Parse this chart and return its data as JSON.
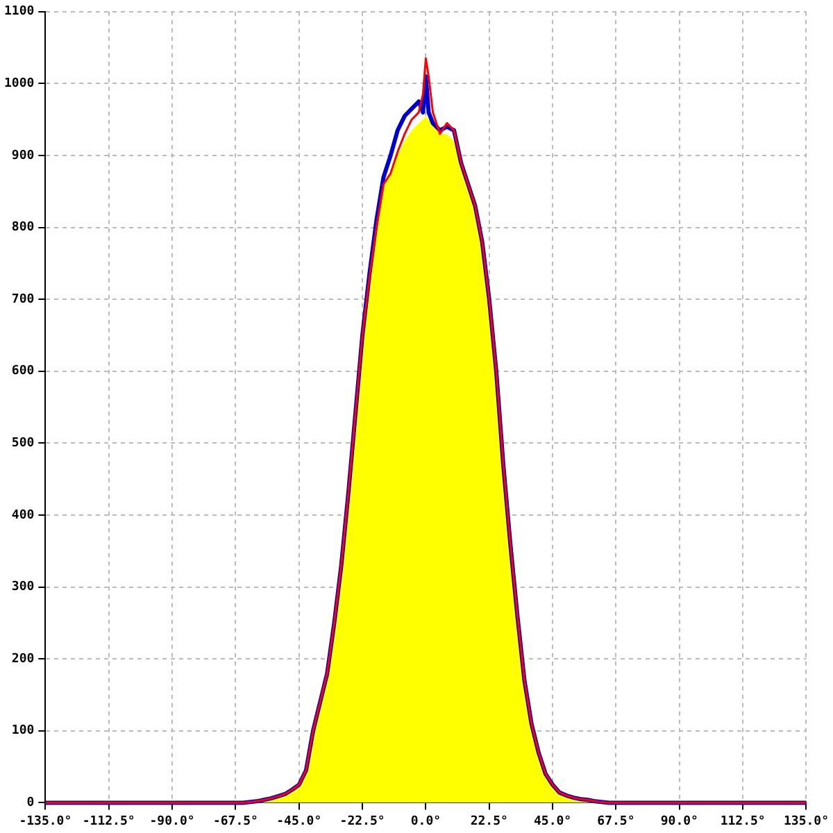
{
  "chart_data": {
    "type": "area",
    "x": [
      -135,
      -65,
      -60,
      -57.5,
      -55,
      -52.5,
      -50,
      -47.5,
      -45,
      -42.5,
      -40,
      -37.5,
      -35,
      -32.5,
      -30,
      -27.5,
      -25,
      -22.5,
      -20,
      -17.5,
      -15,
      -12.5,
      -10,
      -7.5,
      -5,
      -2.5,
      -1,
      0,
      1,
      2.5,
      5,
      7.5,
      10,
      12.5,
      15,
      17.5,
      20,
      22.5,
      25,
      27.5,
      30,
      32.5,
      35,
      37.5,
      40,
      42.5,
      45,
      47.5,
      50,
      52.5,
      55,
      57.5,
      60,
      65,
      135
    ],
    "series": [
      {
        "type": "area",
        "color": "#ffff00",
        "values": [
          0,
          0,
          2,
          4,
          6,
          9,
          12,
          18,
          25,
          45,
          100,
          140,
          180,
          250,
          330,
          430,
          540,
          650,
          730,
          800,
          855,
          875,
          900,
          920,
          935,
          945,
          950,
          955,
          950,
          945,
          930,
          930,
          920,
          885,
          855,
          825,
          775,
          700,
          600,
          470,
          360,
          260,
          170,
          110,
          70,
          40,
          25,
          14,
          10,
          7,
          5,
          4,
          2,
          0,
          0
        ]
      },
      {
        "type": "line",
        "color": "#0000cc",
        "values": [
          0,
          0,
          2,
          4,
          6,
          9,
          12,
          18,
          25,
          45,
          100,
          140,
          180,
          250,
          330,
          430,
          540,
          650,
          735,
          810,
          870,
          900,
          935,
          955,
          965,
          975,
          960,
          1010,
          960,
          945,
          935,
          940,
          935,
          890,
          860,
          830,
          780,
          700,
          600,
          470,
          360,
          260,
          170,
          110,
          70,
          40,
          25,
          14,
          10,
          7,
          5,
          4,
          2,
          0,
          0
        ]
      },
      {
        "type": "line",
        "color": "#ff0000",
        "values": [
          0,
          0,
          2,
          4,
          6,
          9,
          12,
          18,
          25,
          45,
          100,
          140,
          180,
          250,
          330,
          430,
          540,
          650,
          730,
          800,
          860,
          875,
          905,
          930,
          950,
          960,
          985,
          1035,
          1010,
          960,
          930,
          945,
          935,
          890,
          860,
          830,
          780,
          700,
          600,
          470,
          360,
          260,
          170,
          110,
          70,
          40,
          25,
          14,
          10,
          7,
          5,
          4,
          2,
          0,
          0
        ]
      }
    ],
    "xlim": [
      -135,
      135
    ],
    "xticks": [
      {
        "value": -135,
        "label": "-135.0°"
      },
      {
        "value": -112.5,
        "label": "-112.5°"
      },
      {
        "value": -90,
        "label": "-90.0°"
      },
      {
        "value": -67.5,
        "label": "-67.5°"
      },
      {
        "value": -45,
        "label": "-45.0°"
      },
      {
        "value": -22.5,
        "label": "-22.5°"
      },
      {
        "value": 0,
        "label": "0.0°"
      },
      {
        "value": 22.5,
        "label": "22.5°"
      },
      {
        "value": 45,
        "label": "45.0°"
      },
      {
        "value": 67.5,
        "label": "67.5°"
      },
      {
        "value": 90,
        "label": "90.0°"
      },
      {
        "value": 112.5,
        "label": "112.5°"
      },
      {
        "value": 135,
        "label": "135.0°"
      }
    ],
    "ylim": [
      0,
      1100
    ],
    "yticks": [
      0,
      100,
      200,
      300,
      400,
      500,
      600,
      700,
      800,
      900,
      1000,
      1100
    ],
    "grid": true,
    "legend": false,
    "marker": "none"
  }
}
